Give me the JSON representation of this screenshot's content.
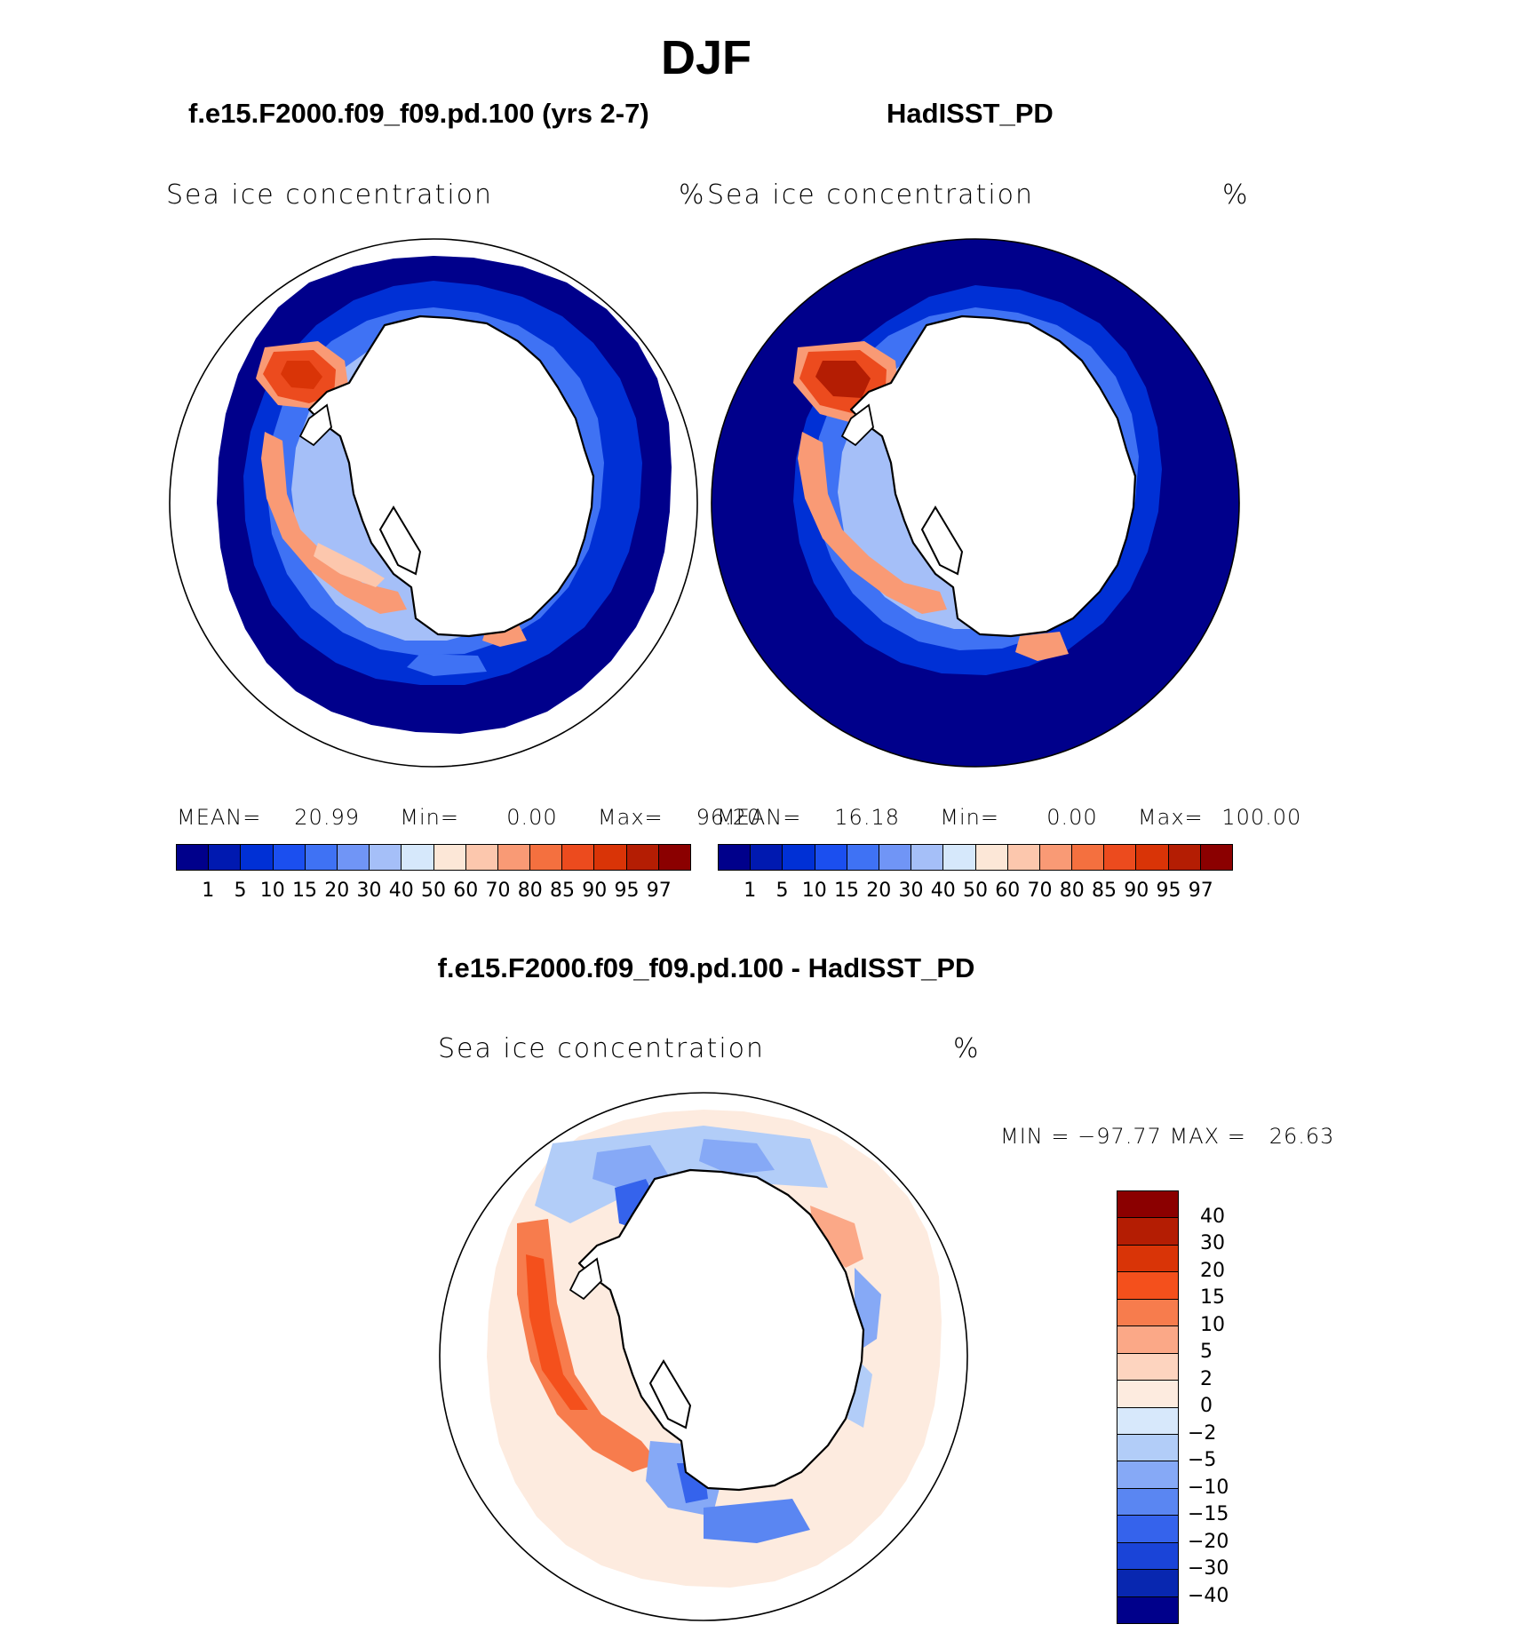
{
  "page_title": "DJF",
  "palettes": {
    "conc": [
      "#00008b",
      "#0019b0",
      "#0030d5",
      "#1b4fef",
      "#3f72f4",
      "#7095f6",
      "#a5bff8",
      "#d6e8fb",
      "#fce7d7",
      "#fcc7ad",
      "#f99a75",
      "#f4703f",
      "#ec4b1e",
      "#d93407",
      "#b41d03",
      "#8b0000"
    ],
    "diff": [
      "#8b0000",
      "#b41d03",
      "#d93407",
      "#f4501c",
      "#f77c4d",
      "#fba887",
      "#fdd4bf",
      "#fdebdf",
      "#d7e8fb",
      "#b2cdf8",
      "#86a9f6",
      "#5a86f2",
      "#3563ec",
      "#1a44d8",
      "#0827b0",
      "#00008b"
    ]
  },
  "panels": {
    "left": {
      "title": "f.e15.F2000.f09_f09.pd.100 (yrs 2-7)",
      "field": "Sea ice concentration",
      "units": "%",
      "mean_label": "MEAN=",
      "mean": "20.99",
      "min_label": "Min=",
      "min": "0.00",
      "max_label": "Max=",
      "max": "96.20"
    },
    "right": {
      "title": "HadISST_PD",
      "field": "Sea ice concentration",
      "units": "%",
      "mean_label": "MEAN=",
      "mean": "16.18",
      "min_label": "Min=",
      "min": "0.00",
      "max_label": "Max=",
      "max": "100.00"
    },
    "diff": {
      "title": "f.e15.F2000.f09_f09.pd.100 - HadISST_PD",
      "field": "Sea ice concentration",
      "units": "%",
      "minmax": "MIN = −97.77 MAX =   26.63"
    }
  },
  "conc_levels": [
    "1",
    "5",
    "10",
    "15",
    "20",
    "30",
    "40",
    "50",
    "60",
    "70",
    "80",
    "85",
    "90",
    "95",
    "97"
  ],
  "diff_levels": [
    "40",
    "30",
    "20",
    "15",
    "10",
    "5",
    "2",
    "0",
    "−2",
    "−5",
    "−10",
    "−15",
    "−20",
    "−30",
    "−40"
  ]
}
